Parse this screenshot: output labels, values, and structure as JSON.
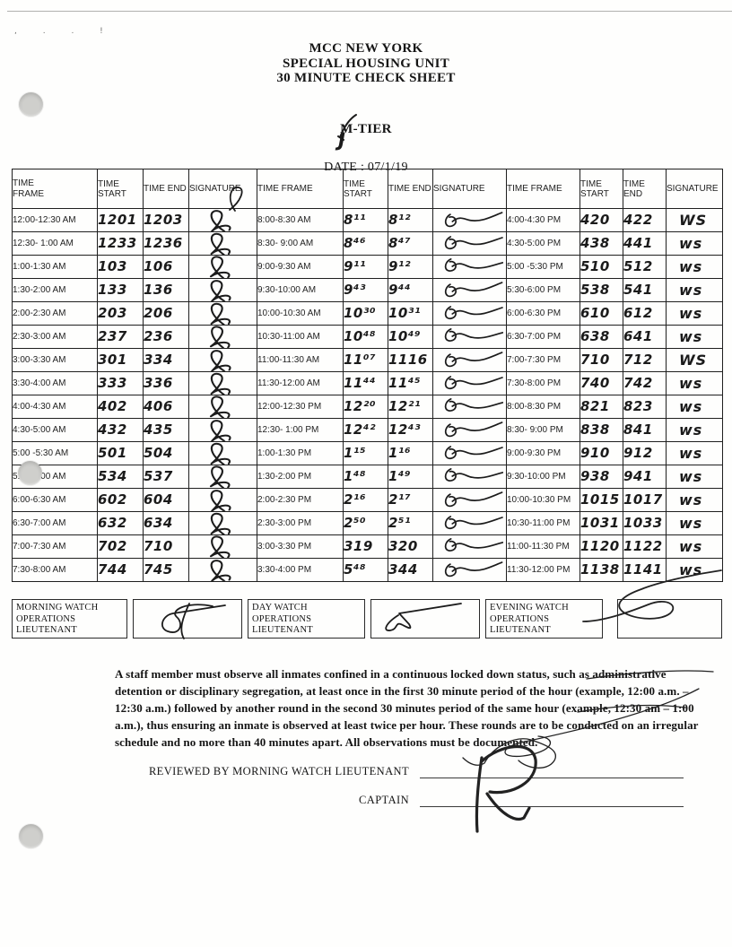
{
  "page": {
    "stray_marks": ", .  .  !"
  },
  "header": {
    "title_line1": "MCC NEW YORK",
    "title_line2": "SPECIAL HOUSING UNIT",
    "title_line3": "30 MINUTE CHECK SHEET",
    "tier_label": "M-TIER",
    "tier_handwritten": "J",
    "date_line": "DATE : 07/1/19"
  },
  "table": {
    "headers": {
      "time_frame": "TIME FRAME",
      "time_start": "TIME START",
      "time_end": "TIME END",
      "signature": "SIGNATURE"
    },
    "groups": [
      {
        "rows": [
          {
            "frame": "12:00-12:30 AM",
            "start": "1201",
            "end": "1203"
          },
          {
            "frame": "12:30- 1:00 AM",
            "start": "1233",
            "end": "1236"
          },
          {
            "frame": "1:00-1:30 AM",
            "start": "103",
            "end": "106"
          },
          {
            "frame": "1:30-2:00 AM",
            "start": "133",
            "end": "136"
          },
          {
            "frame": "2:00-2:30 AM",
            "start": "203",
            "end": "206"
          },
          {
            "frame": "2:30-3:00 AM",
            "start": "237",
            "end": "236"
          },
          {
            "frame": "3:00-3:30 AM",
            "start": "301",
            "end": "334"
          },
          {
            "frame": "3:30-4:00 AM",
            "start": "333",
            "end": "336"
          },
          {
            "frame": "4:00-4:30 AM",
            "start": "402",
            "end": "406"
          },
          {
            "frame": "4:30-5:00 AM",
            "start": "432",
            "end": "435"
          },
          {
            "frame": "5:00 -5:30 AM",
            "start": "501",
            "end": "504"
          },
          {
            "frame": "5:30-6:00 AM",
            "start": "534",
            "end": "537"
          },
          {
            "frame": "6:00-6:30 AM",
            "start": "602",
            "end": "604"
          },
          {
            "frame": "6:30-7:00 AM",
            "start": "632",
            "end": "634"
          },
          {
            "frame": "7:00-7:30 AM",
            "start": "702",
            "end": "710"
          },
          {
            "frame": "7:30-8:00 AM",
            "start": "744",
            "end": "745"
          }
        ]
      },
      {
        "rows": [
          {
            "frame": "8:00-8:30 AM",
            "start": "8¹¹",
            "end": "8¹²"
          },
          {
            "frame": "8:30- 9:00 AM",
            "start": "8⁴⁶",
            "end": "8⁴⁷"
          },
          {
            "frame": "9:00-9:30 AM",
            "start": "9¹¹",
            "end": "9¹²"
          },
          {
            "frame": "9:30-10:00 AM",
            "start": "9⁴³",
            "end": "9⁴⁴"
          },
          {
            "frame": "10:00-10:30 AM",
            "start": "10³⁰",
            "end": "10³¹"
          },
          {
            "frame": "10:30-11:00 AM",
            "start": "10⁴⁸",
            "end": "10⁴⁹"
          },
          {
            "frame": "11:00-11:30 AM",
            "start": "11⁰⁷",
            "end": "1116"
          },
          {
            "frame": "11:30-12:00 AM",
            "start": "11⁴⁴",
            "end": "11⁴⁵"
          },
          {
            "frame": "12:00-12:30 PM",
            "start": "12²⁰",
            "end": "12²¹"
          },
          {
            "frame": "12:30- 1:00 PM",
            "start": "12⁴²",
            "end": "12⁴³"
          },
          {
            "frame": "1:00-1:30 PM",
            "start": "1¹⁵",
            "end": "1¹⁶"
          },
          {
            "frame": "1:30-2:00 PM",
            "start": "1⁴⁸",
            "end": "1⁴⁹"
          },
          {
            "frame": "2:00-2:30 PM",
            "start": "2¹⁶",
            "end": "2¹⁷"
          },
          {
            "frame": "2:30-3:00 PM",
            "start": "2⁵⁰",
            "end": "2⁵¹"
          },
          {
            "frame": "3:00-3:30 PM",
            "start": "319",
            "end": "320"
          },
          {
            "frame": "3:30-4:00 PM",
            "start": "5⁴⁸",
            "end": "344"
          }
        ]
      },
      {
        "rows": [
          {
            "frame": "4:00-4:30 PM",
            "start": "420",
            "end": "422",
            "sig": "WS"
          },
          {
            "frame": "4:30-5:00 PM",
            "start": "438",
            "end": "441",
            "sig": "ws"
          },
          {
            "frame": "5:00 -5:30 PM",
            "start": "510",
            "end": "512",
            "sig": "ws"
          },
          {
            "frame": "5:30-6:00 PM",
            "start": "538",
            "end": "541",
            "sig": "ws"
          },
          {
            "frame": "6:00-6:30 PM",
            "start": "610",
            "end": "612",
            "sig": "ws"
          },
          {
            "frame": "6:30-7:00 PM",
            "start": "638",
            "end": "641",
            "sig": "ws"
          },
          {
            "frame": "7:00-7:30 PM",
            "start": "710",
            "end": "712",
            "sig": "WS"
          },
          {
            "frame": "7:30-8:00 PM",
            "start": "740",
            "end": "742",
            "sig": "ws"
          },
          {
            "frame": "8:00-8:30 PM",
            "start": "821",
            "end": "823",
            "sig": "ws"
          },
          {
            "frame": "8:30- 9:00 PM",
            "start": "838",
            "end": "841",
            "sig": "ws"
          },
          {
            "frame": "9:00-9:30 PM",
            "start": "910",
            "end": "912",
            "sig": "ws"
          },
          {
            "frame": "9:30-10:00 PM",
            "start": "938",
            "end": "941",
            "sig": "ws"
          },
          {
            "frame": "10:00-10:30 PM",
            "start": "1015",
            "end": "1017",
            "sig": "ws"
          },
          {
            "frame": "10:30-11:00 PM",
            "start": "1031",
            "end": "1033",
            "sig": "ws"
          },
          {
            "frame": "11:00-11:30 PM",
            "start": "1120",
            "end": "1122",
            "sig": "ws"
          },
          {
            "frame": "11:30-12:00 PM",
            "start": "1138",
            "end": "1141",
            "sig": "ws"
          }
        ]
      }
    ]
  },
  "footer": {
    "watch_boxes": [
      {
        "label": "MORNING WATCH OPERATIONS LIEUTENANT"
      },
      {
        "label": "DAY WATCH OPERATIONS LIEUTENANT"
      },
      {
        "label": "EVENING WATCH OPERATIONS LIEUTENANT"
      }
    ]
  },
  "notice": {
    "text": "A staff member must observe all inmates confined in a continuous locked down status, such as administrative detention or disciplinary segregation, at least once in the first 30 minute period of the hour (example, 12:00 a.m. – 12:30 a.m.) followed by another round in the second 30 minutes period of the same hour (example, 12:30 am – 1:00 a.m.), thus ensuring an inmate is observed at least twice per hour. These rounds are to be conducted on an irregular schedule and no more than 40 minutes apart. All observations must be documented."
  },
  "review": {
    "reviewed_label": "REVIEWED BY MORNING WATCH LIEUTENANT",
    "captain_label": "CAPTAIN"
  },
  "colors": {
    "ink": "#1c1c1c",
    "print": "#151515",
    "punch": "#cfcfcc"
  }
}
